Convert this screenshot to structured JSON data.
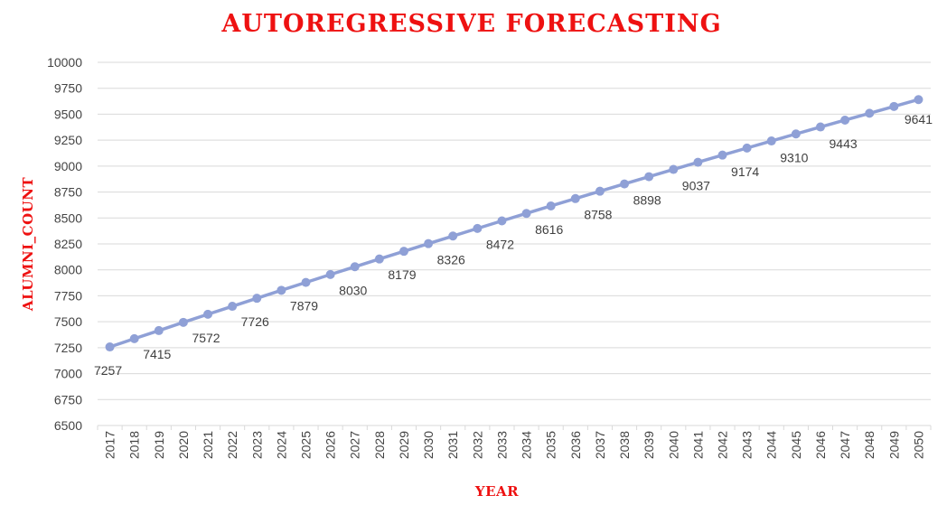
{
  "chart_data": {
    "type": "line",
    "title": "AUTOREGRESSIVE FORECASTING",
    "xlabel": "YEAR",
    "ylabel": "ALUMNI_COUNT",
    "ylim": [
      6500,
      10000
    ],
    "ytick_step": 250,
    "grid": true,
    "legend": "none",
    "colors": {
      "title": "#ee1111",
      "series": "#8fa0d6",
      "grid": "#d9d9d9"
    },
    "x": [
      2017,
      2018,
      2019,
      2020,
      2021,
      2022,
      2023,
      2024,
      2025,
      2026,
      2027,
      2028,
      2029,
      2030,
      2031,
      2032,
      2033,
      2034,
      2035,
      2036,
      2037,
      2038,
      2039,
      2040,
      2041,
      2042,
      2043,
      2044,
      2045,
      2046,
      2047,
      2048,
      2049,
      2050
    ],
    "series": [
      {
        "values": [
          7257,
          7337,
          7415,
          7494,
          7572,
          7649,
          7726,
          7803,
          7879,
          7955,
          8030,
          8105,
          8179,
          8253,
          8326,
          8399,
          8472,
          8544,
          8616,
          8687,
          8758,
          8828,
          8898,
          8968,
          9037,
          9106,
          9174,
          9242,
          9310,
          9377,
          9443,
          9509,
          9575,
          9641
        ]
      }
    ],
    "data_labels": [
      {
        "x": 2017,
        "text": "7257"
      },
      {
        "x": 2019,
        "text": "7415"
      },
      {
        "x": 2021,
        "text": "7572"
      },
      {
        "x": 2023,
        "text": "7726"
      },
      {
        "x": 2025,
        "text": "7879"
      },
      {
        "x": 2027,
        "text": "8030"
      },
      {
        "x": 2029,
        "text": "8179"
      },
      {
        "x": 2031,
        "text": "8326"
      },
      {
        "x": 2033,
        "text": "8472"
      },
      {
        "x": 2035,
        "text": "8616"
      },
      {
        "x": 2037,
        "text": "8758"
      },
      {
        "x": 2039,
        "text": "8898"
      },
      {
        "x": 2041,
        "text": "9037"
      },
      {
        "x": 2043,
        "text": "9174"
      },
      {
        "x": 2045,
        "text": "9310"
      },
      {
        "x": 2047,
        "text": "9443"
      },
      {
        "x": 2050,
        "text": "9641"
      }
    ]
  }
}
